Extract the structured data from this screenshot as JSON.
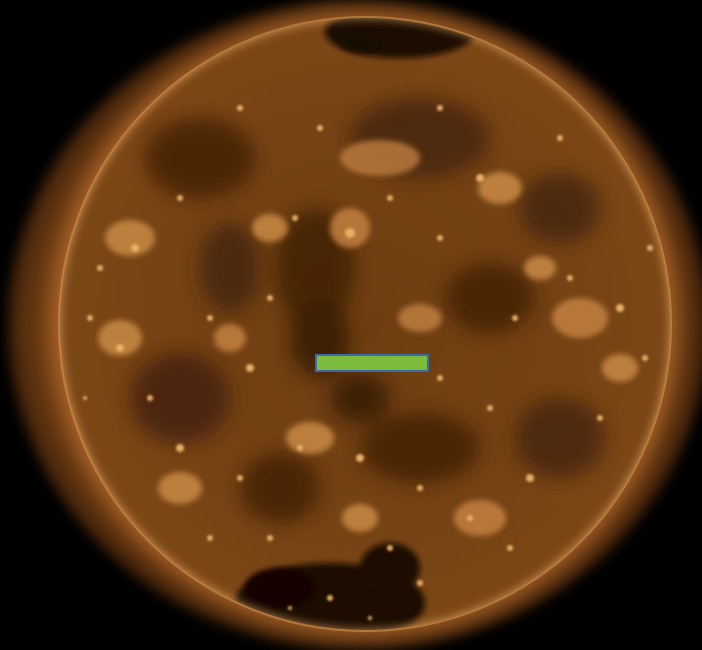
{
  "image": {
    "subject": "solar-disk",
    "colors": {
      "background": "#000000",
      "disk_base": "#744214",
      "disk_bright": "#d08a3c",
      "coronal_hole": "#1e0c02",
      "bright_region": "#e3a35a",
      "marker_fill": "#7dbb3c",
      "marker_border": "#3a6aa8"
    }
  }
}
